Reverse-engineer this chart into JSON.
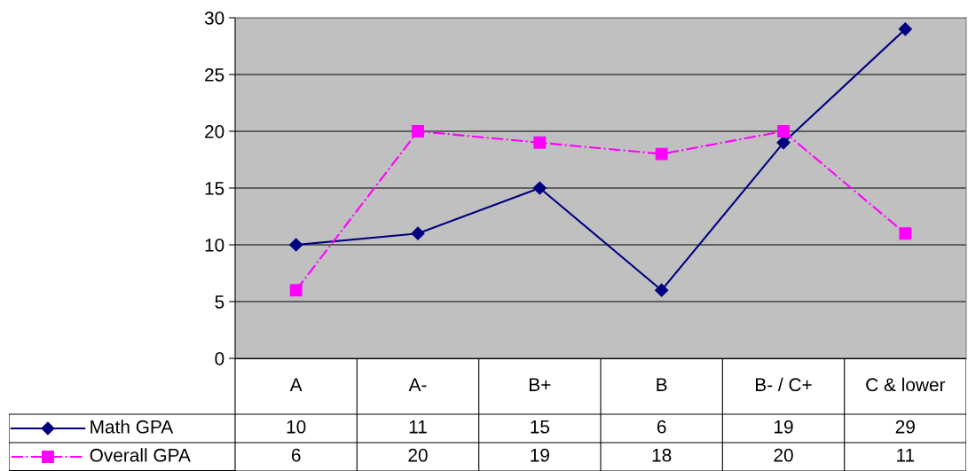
{
  "chart_data": {
    "type": "line",
    "categories": [
      "A",
      "A-",
      "B+",
      "B",
      "B- / C+",
      "C & lower"
    ],
    "series": [
      {
        "name": "Math GPA",
        "color": "#000080",
        "values": [
          10,
          11,
          15,
          6,
          19,
          29
        ],
        "marker": "diamond",
        "line_style": "solid"
      },
      {
        "name": "Overall GPA",
        "color": "#ff00ff",
        "values": [
          6,
          20,
          19,
          18,
          20,
          11
        ],
        "marker": "square",
        "line_style": "dashdot"
      }
    ],
    "ylim": [
      0,
      30
    ],
    "yticks": [
      0,
      5,
      10,
      15,
      20,
      25,
      30
    ],
    "grid": "y",
    "legend": "bottom",
    "data_labels": true,
    "tick_labels": "y"
  }
}
